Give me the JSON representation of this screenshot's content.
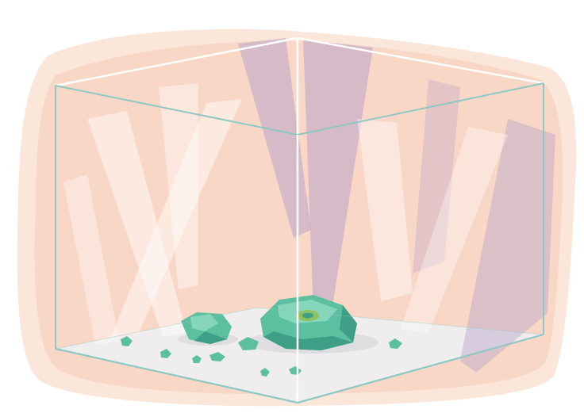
{
  "scene": {
    "subject": "glass-box-with-green-rocks",
    "palette": {
      "background": "#ffffff",
      "glow": "#f8d2c0",
      "glow_light": "#fbe3d6",
      "glass_edge": "#8ec8c3",
      "glass_highlight": "#ffffff",
      "light_ray_purple": "#b9a3c9",
      "light_ray_white": "#ffffff",
      "floor": "#eeeeef",
      "rock_dark": "#3f9f86",
      "rock_mid": "#5cbf9f",
      "rock_light": "#86d6bc",
      "rock_core": "#8fc25a"
    },
    "elements": [
      "background-glow",
      "glass-box",
      "light-rays",
      "floor",
      "large-rock",
      "medium-rock",
      "small-pebbles"
    ]
  }
}
